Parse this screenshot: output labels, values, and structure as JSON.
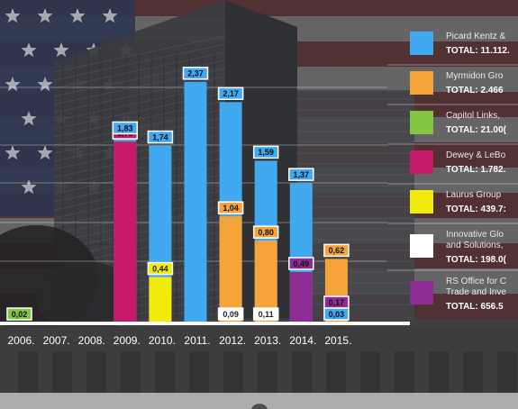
{
  "colors": {
    "blue": "#41a9ef",
    "orange": "#f5a43a",
    "green": "#84c545",
    "magenta": "#c61b6c",
    "yellow": "#f2ea0a",
    "white": "#ffffff",
    "purple": "#8e2c95"
  },
  "chart_data": {
    "type": "bar",
    "categories": [
      "2006.",
      "2007.",
      "2008.",
      "2009.",
      "2010.",
      "2011.",
      "2012.",
      "2013.",
      "2014.",
      "2015."
    ],
    "bars": [
      {
        "cat": 0,
        "series": "green",
        "value": 0.02,
        "label": "0,02"
      },
      {
        "cat": 3,
        "series": "magenta",
        "value": 1.78,
        "label": "1,78"
      },
      {
        "cat": 3,
        "series": "blue",
        "value": 1.83,
        "label": "1,83"
      },
      {
        "cat": 4,
        "series": "blue",
        "value": 1.74,
        "label": "1,74"
      },
      {
        "cat": 4,
        "series": "yellow",
        "value": 0.44,
        "label": "0,44"
      },
      {
        "cat": 5,
        "series": "blue",
        "value": 2.37,
        "label": "2,37"
      },
      {
        "cat": 6,
        "series": "blue",
        "value": 2.17,
        "label": "2,17"
      },
      {
        "cat": 6,
        "series": "orange",
        "value": 1.04,
        "label": "1,04"
      },
      {
        "cat": 6,
        "series": "white",
        "value": 0.09,
        "label": "0,09"
      },
      {
        "cat": 7,
        "series": "blue",
        "value": 1.59,
        "label": "1,59"
      },
      {
        "cat": 7,
        "series": "orange",
        "value": 0.8,
        "label": "0,80"
      },
      {
        "cat": 7,
        "series": "white",
        "value": 0.11,
        "label": "0,11"
      },
      {
        "cat": 8,
        "series": "blue",
        "value": 1.37,
        "label": "1,37"
      },
      {
        "cat": 8,
        "series": "purple",
        "value": 0.49,
        "label": "0,49"
      },
      {
        "cat": 9,
        "series": "orange",
        "value": 0.62,
        "label": "0,62"
      },
      {
        "cat": 9,
        "series": "purple",
        "value": 0.17,
        "label": "0,17"
      },
      {
        "cat": 9,
        "series": "blue",
        "value": 0.03,
        "label": "0,03"
      }
    ],
    "ylim": [
      0,
      2.6
    ],
    "legend": [
      {
        "series": "blue",
        "lines": [
          "Picard Kentz &"
        ],
        "total": "TOTAL: 11.112."
      },
      {
        "series": "orange",
        "lines": [
          "Myrmidon Gro"
        ],
        "total": "TOTAL: 2.466"
      },
      {
        "series": "green",
        "lines": [
          "Capitol Links,"
        ],
        "total": "TOTAL: 21.00("
      },
      {
        "series": "magenta",
        "lines": [
          "Dewey & LeBo"
        ],
        "total": "TOTAL: 1.782."
      },
      {
        "series": "yellow",
        "lines": [
          "Laurus Group"
        ],
        "total": "TOTAL: 439.7:"
      },
      {
        "series": "white",
        "lines": [
          "Innovative Glo",
          "and Solutions,"
        ],
        "total": "TOTAL: 198.0("
      },
      {
        "series": "purple",
        "lines": [
          "RS Office for C",
          "Trade and Inve"
        ],
        "total": "TOTAL: 656.5"
      }
    ]
  }
}
